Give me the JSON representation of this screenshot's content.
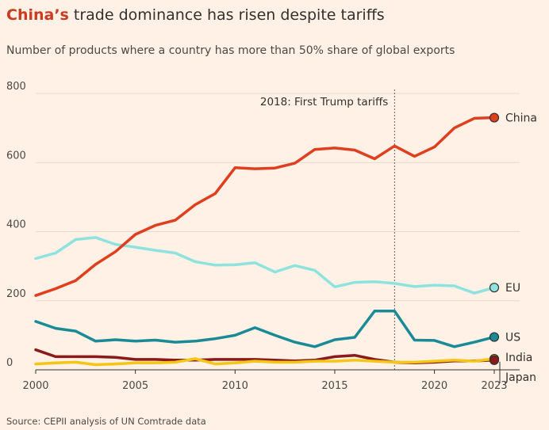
{
  "title_highlight": "China’s",
  "title_rest": " trade dominance has risen despite tariffs",
  "subtitle": "Number of products where a country has more than 50% share of global exports",
  "source": "Source: CEPII analysis of UN Comtrade data",
  "annotation": "2018: First Trump tariffs",
  "chart_data": {
    "type": "line",
    "xlim": [
      2000,
      2023
    ],
    "ylim": [
      0,
      800
    ],
    "x_ticks": [
      "2000",
      "2005",
      "2010",
      "2015",
      "2020",
      "2023"
    ],
    "y_ticks": [
      "800",
      "600",
      "400",
      "200",
      "0"
    ],
    "grid": true,
    "annotation_x": 2018,
    "x": [
      2000,
      2001,
      2002,
      2003,
      2004,
      2005,
      2006,
      2007,
      2008,
      2009,
      2010,
      2011,
      2012,
      2013,
      2014,
      2015,
      2016,
      2017,
      2018,
      2019,
      2020,
      2021,
      2022,
      2023
    ],
    "series": [
      {
        "name": "China",
        "color": "#e03f1f",
        "label_color": "#33302e",
        "values": [
          215,
          235,
          258,
          305,
          342,
          392,
          418,
          433,
          478,
          510,
          585,
          582,
          584,
          598,
          638,
          642,
          636,
          611,
          648,
          618,
          645,
          700,
          728,
          730
        ]
      },
      {
        "name": "EU",
        "color": "#8fe3de",
        "label_color": "#33302e",
        "values": [
          322,
          338,
          377,
          383,
          363,
          355,
          346,
          338,
          313,
          303,
          304,
          310,
          283,
          302,
          288,
          240,
          253,
          255,
          250,
          241,
          245,
          243,
          222,
          238
        ]
      },
      {
        "name": "US",
        "color": "#1a8a96",
        "label_color": "#33302e",
        "values": [
          140,
          120,
          112,
          83,
          87,
          83,
          86,
          80,
          83,
          90,
          100,
          122,
          100,
          80,
          67,
          87,
          94,
          170,
          170,
          86,
          85,
          67,
          80,
          95
        ]
      },
      {
        "name": "Japan",
        "color": "#8b1a1a",
        "label_color": "#33302e",
        "values": [
          58,
          38,
          38,
          38,
          36,
          30,
          30,
          28,
          28,
          30,
          30,
          30,
          28,
          26,
          28,
          38,
          42,
          30,
          22,
          20,
          22,
          26,
          26,
          28
        ]
      },
      {
        "name": "India",
        "color": "#f5c614",
        "label_color": "#33302e",
        "values": [
          17,
          20,
          22,
          15,
          17,
          20,
          20,
          22,
          32,
          17,
          20,
          25,
          22,
          22,
          25,
          25,
          28,
          25,
          22,
          22,
          25,
          28,
          25,
          32
        ]
      }
    ]
  }
}
